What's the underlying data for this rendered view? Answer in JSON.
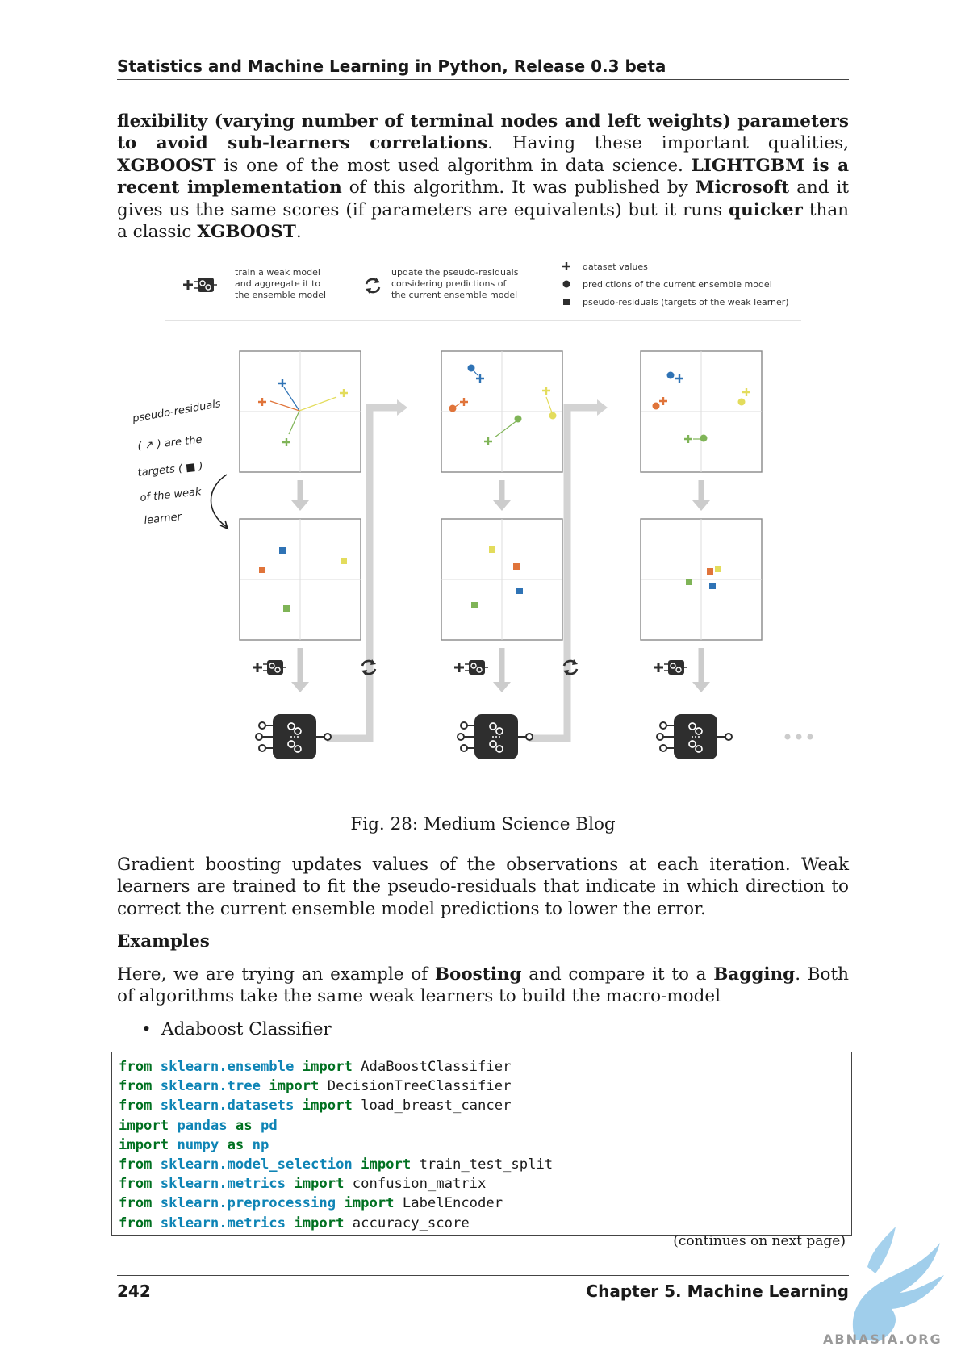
{
  "header": {
    "title": "Statistics and Machine Learning in Python, Release 0.3 beta"
  },
  "intro": {
    "s1": "flexibility (varying number of terminal nodes and left weights) parameters to avoid sub-learners correlations",
    "s2": ". Having these important qualities, ",
    "s3": "XGBOOST",
    "s4": " is one of the most used algorithm in data science. ",
    "s5": "LIGHTGBM is a recent implementation",
    "s6": " of this algorithm. It was published by ",
    "s7": "Microsoft",
    "s8": " and it gives us the same scores (if parameters are equivalents) but it runs ",
    "s9": "quicker",
    "s10": " than a classic ",
    "s11": "XGBOOST",
    "s12": "."
  },
  "figure": {
    "legend": {
      "train_line1": "train a weak model",
      "train_line2": "and aggregate it to",
      "train_line3": "the ensemble model",
      "update_line1": "update the pseudo-residuals",
      "update_line2": "considering predictions of",
      "update_line3": "the current ensemble model",
      "dataset": "dataset values",
      "predictions": "predictions of the current ensemble model",
      "residuals": "pseudo-residuals (targets of the weak learner)"
    },
    "annotation": {
      "line1": "pseudo-residuals",
      "line2": "( ↗ ) are the",
      "line3": "targets ( ■ )",
      "line4": "of the weak",
      "line5": "learner"
    },
    "colors": {
      "blue": "#2f73b5",
      "orange": "#e0743a",
      "yellow": "#e3dc5c",
      "green": "#7fb457",
      "grey": "#cccccc",
      "dark": "#2e2e2e"
    },
    "caption": "Fig. 28: Medium Science Blog"
  },
  "para2": "Gradient boosting updates values of the observations at each iteration. Weak learners are trained to fit the pseudo-residuals that indicate in which direction to correct the current ensemble model predictions to lower the error.",
  "examples": {
    "heading": "Examples",
    "p_a": "Here, we are trying an example of ",
    "p_b": "Boosting",
    "p_c": " and compare it to a ",
    "p_d": "Bagging",
    "p_e": ". Both of algorithms take the same weak learners to build the macro-model",
    "bullet": "Adaboost Classifier"
  },
  "code": {
    "from": "from",
    "import": "import",
    "as": "as",
    "lines": [
      {
        "module": "sklearn.ensemble",
        "name": "AdaBoostClassifier"
      },
      {
        "module": "sklearn.tree",
        "name": "DecisionTreeClassifier"
      },
      {
        "module": "sklearn.datasets",
        "name": "load_breast_cancer"
      },
      {
        "module": "pandas",
        "alias": "pd"
      },
      {
        "module": "numpy",
        "alias": "np"
      },
      {
        "module": "sklearn.model_selection",
        "name": "train_test_split"
      },
      {
        "module": "sklearn.metrics",
        "name": "confusion_matrix"
      },
      {
        "module": "sklearn.preprocessing",
        "name": "LabelEncoder"
      },
      {
        "module": "sklearn.metrics",
        "name": "accuracy_score"
      }
    ],
    "continues": "(continues on next page)"
  },
  "footer": {
    "page_number": "242",
    "chapter": "Chapter 5.  Machine Learning"
  },
  "watermark": "ABNASIA.ORG"
}
